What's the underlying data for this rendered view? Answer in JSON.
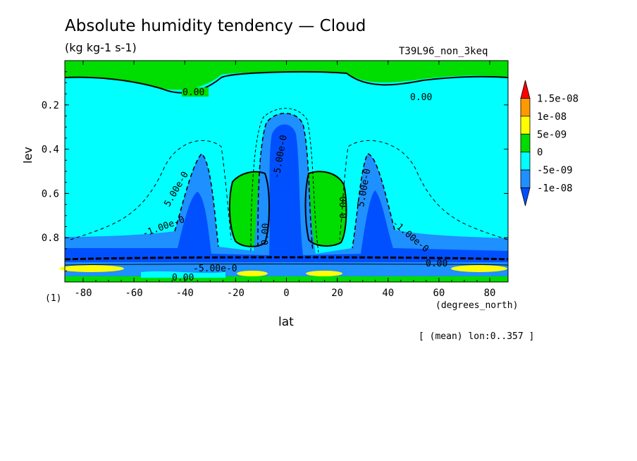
{
  "chart_data": {
    "type": "heatmap",
    "title": "Absolute humidity tendency — Cloud",
    "units": "(kg kg-1 s-1)",
    "run_name": "T39L96_non_3keq",
    "xlabel": "lat",
    "xunits": "(degrees_north)",
    "ylabel": "lev",
    "panel_label": "(1)",
    "mean_note": "[ (mean) lon:0..357 ]",
    "x_ticks": [
      -80,
      -60,
      -40,
      -20,
      0,
      20,
      40,
      60,
      80
    ],
    "x_tick_labels": [
      "-80",
      "-60",
      "-40",
      "-20",
      "0",
      "20",
      "40",
      "60",
      "80"
    ],
    "y_ticks": [
      0.2,
      0.4,
      0.6,
      0.8
    ],
    "y_tick_labels": [
      "0.2",
      "0.4",
      "0.6",
      "0.8"
    ],
    "xlim": [
      -87.2,
      87.2
    ],
    "ylim": [
      1.0,
      0.0
    ],
    "colorbar": {
      "levels": [
        "1.5e-08",
        "1e-08",
        "5e-09",
        "0",
        "-5e-09",
        "-1e-08"
      ],
      "colors": [
        "#ff0000",
        "#ff9900",
        "#ffff00",
        "#00dd00",
        "#00ffff",
        "#1e90ff",
        "#0050ff"
      ]
    },
    "contour_labels": [
      "0.00",
      "0.00",
      "5.00e-0",
      "-1.00e-0",
      "-5.00e-0",
      "0.00",
      "-5.00e-0",
      "0.00",
      "0.00",
      "5.00e-0",
      "-1.00e-0",
      "0.00"
    ],
    "colors": {
      "positive_small": "#00dd00",
      "negative_small": "#00ffff",
      "negative_mid": "#1e90ff",
      "negative_large": "#0050ff",
      "positive_mid": "#ffff00"
    }
  }
}
